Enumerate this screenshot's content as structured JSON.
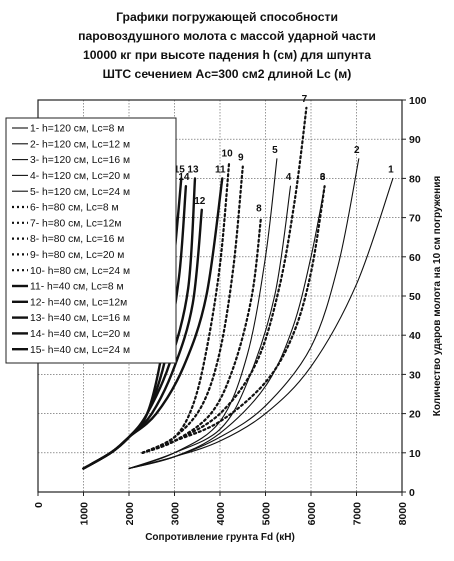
{
  "title_lines": [
    "Графики погружающей способности",
    "паровоздушного молота с массой ударной части",
    "10000 кг при высоте падения h (см) для шпунта",
    "ШТС сечением Ac=300 см2  длиной Lc (м)"
  ],
  "chart_data": {
    "type": "line",
    "title": "Графики погружающей способности паровоздушного молота с массой ударной части 10000 кг при высоте падения h (см) для шпунта ШТС сечением Ac=300 см2  длиной Lc (м)",
    "xlabel": "Сопротивление грунта Fd (кН)",
    "ylabel": "Количество ударов молота на 10 см погружения",
    "xlim": [
      0,
      8000
    ],
    "ylim": [
      0,
      100
    ],
    "x_ticks": [
      "0",
      "1000",
      "2000",
      "3000",
      "4000",
      "5000",
      "6000",
      "7000",
      "8000"
    ],
    "y_ticks": [
      "0",
      "10",
      "20",
      "30",
      "40",
      "50",
      "60",
      "70",
      "80",
      "90",
      "100"
    ],
    "grid": true,
    "legend_position": "left",
    "series": [
      {
        "name": "1- h=120 см, Lc=8 м",
        "label": "1",
        "style": "thin",
        "points": [
          [
            2000,
            6
          ],
          [
            3000,
            9
          ],
          [
            4000,
            13
          ],
          [
            5000,
            20
          ],
          [
            6000,
            32
          ],
          [
            7000,
            53
          ],
          [
            7800,
            80
          ]
        ]
      },
      {
        "name": "2- h=120 см, Lc=12 м",
        "label": "2",
        "style": "thin",
        "points": [
          [
            2000,
            6
          ],
          [
            3000,
            9
          ],
          [
            4000,
            14
          ],
          [
            5000,
            22
          ],
          [
            6000,
            37
          ],
          [
            6600,
            58
          ],
          [
            7050,
            85
          ]
        ]
      },
      {
        "name": "3- h=120 см, Lc=16 м",
        "label": "3",
        "style": "thin",
        "points": [
          [
            2000,
            6
          ],
          [
            3000,
            9
          ],
          [
            4000,
            15
          ],
          [
            5000,
            27
          ],
          [
            5600,
            42
          ],
          [
            6000,
            60
          ],
          [
            6300,
            78
          ]
        ]
      },
      {
        "name": "4- h=120 см, Lc=20 м",
        "label": "4",
        "style": "thin",
        "points": [
          [
            2000,
            6
          ],
          [
            3000,
            10
          ],
          [
            4000,
            16
          ],
          [
            4600,
            28
          ],
          [
            5200,
            50
          ],
          [
            5550,
            78
          ]
        ]
      },
      {
        "name": "5- h=120 см, Lc=24 м",
        "label": "5",
        "style": "thin",
        "points": [
          [
            2000,
            6
          ],
          [
            3000,
            10
          ],
          [
            4000,
            18
          ],
          [
            4600,
            35
          ],
          [
            5000,
            60
          ],
          [
            5250,
            85
          ]
        ]
      },
      {
        "name": "6- h=80 см, Lc=8 м",
        "label": "6",
        "style": "dot",
        "points": [
          [
            2300,
            10
          ],
          [
            3000,
            13
          ],
          [
            4000,
            18
          ],
          [
            5000,
            28
          ],
          [
            5600,
            40
          ],
          [
            6000,
            56
          ],
          [
            6300,
            78
          ]
        ]
      },
      {
        "name": "7- h=80 см, Lc=12м",
        "label": "7",
        "style": "dot",
        "points": [
          [
            2300,
            10
          ],
          [
            3000,
            13
          ],
          [
            4000,
            20
          ],
          [
            4800,
            33
          ],
          [
            5300,
            52
          ],
          [
            5650,
            75
          ],
          [
            5900,
            98
          ]
        ]
      },
      {
        "name": "8- h=80 см, Lc=16 м",
        "label": "8",
        "style": "dot",
        "points": [
          [
            2300,
            10
          ],
          [
            3000,
            13
          ],
          [
            3800,
            20
          ],
          [
            4300,
            32
          ],
          [
            4700,
            50
          ],
          [
            4900,
            70
          ]
        ]
      },
      {
        "name": "9- h=80 см, Lc=20 м",
        "label": "9",
        "style": "dot",
        "points": [
          [
            2300,
            10
          ],
          [
            3000,
            14
          ],
          [
            3600,
            22
          ],
          [
            4000,
            36
          ],
          [
            4300,
            58
          ],
          [
            4500,
            83
          ]
        ]
      },
      {
        "name": "10- h=80 см, Lc=24 м",
        "label": "10",
        "style": "dot",
        "points": [
          [
            2300,
            10
          ],
          [
            3000,
            14
          ],
          [
            3400,
            22
          ],
          [
            3700,
            36
          ],
          [
            4000,
            58
          ],
          [
            4200,
            84
          ]
        ]
      },
      {
        "name": "11- h=40 см, Lc=8 м",
        "label": "11",
        "style": "thick",
        "points": [
          [
            1000,
            6
          ],
          [
            1600,
            10
          ],
          [
            2000,
            14
          ],
          [
            2600,
            20
          ],
          [
            3200,
            32
          ],
          [
            3700,
            50
          ],
          [
            4050,
            80
          ]
        ]
      },
      {
        "name": "12- h=40 см, Lc=12м",
        "label": "12",
        "style": "thick",
        "points": [
          [
            1000,
            6
          ],
          [
            1600,
            10
          ],
          [
            2000,
            14
          ],
          [
            2500,
            20
          ],
          [
            3000,
            32
          ],
          [
            3400,
            48
          ],
          [
            3600,
            72
          ]
        ]
      },
      {
        "name": "13- h=40 см, Lc=16 м",
        "label": "13",
        "style": "thick",
        "points": [
          [
            1000,
            6
          ],
          [
            1600,
            10
          ],
          [
            2000,
            14
          ],
          [
            2400,
            20
          ],
          [
            2900,
            33
          ],
          [
            3300,
            52
          ],
          [
            3450,
            80
          ]
        ]
      },
      {
        "name": "14- h=40 см, Lc=20 м",
        "label": "14",
        "style": "thick",
        "points": [
          [
            1000,
            6
          ],
          [
            1600,
            10
          ],
          [
            2000,
            14
          ],
          [
            2400,
            20
          ],
          [
            2800,
            34
          ],
          [
            3100,
            55
          ],
          [
            3250,
            78
          ]
        ]
      },
      {
        "name": "15- h=40 см, Lc=24 м",
        "label": "15",
        "style": "thick",
        "points": [
          [
            1000,
            6
          ],
          [
            1600,
            10
          ],
          [
            2000,
            14
          ],
          [
            2400,
            20
          ],
          [
            2700,
            34
          ],
          [
            2950,
            55
          ],
          [
            3150,
            80
          ]
        ]
      }
    ]
  }
}
